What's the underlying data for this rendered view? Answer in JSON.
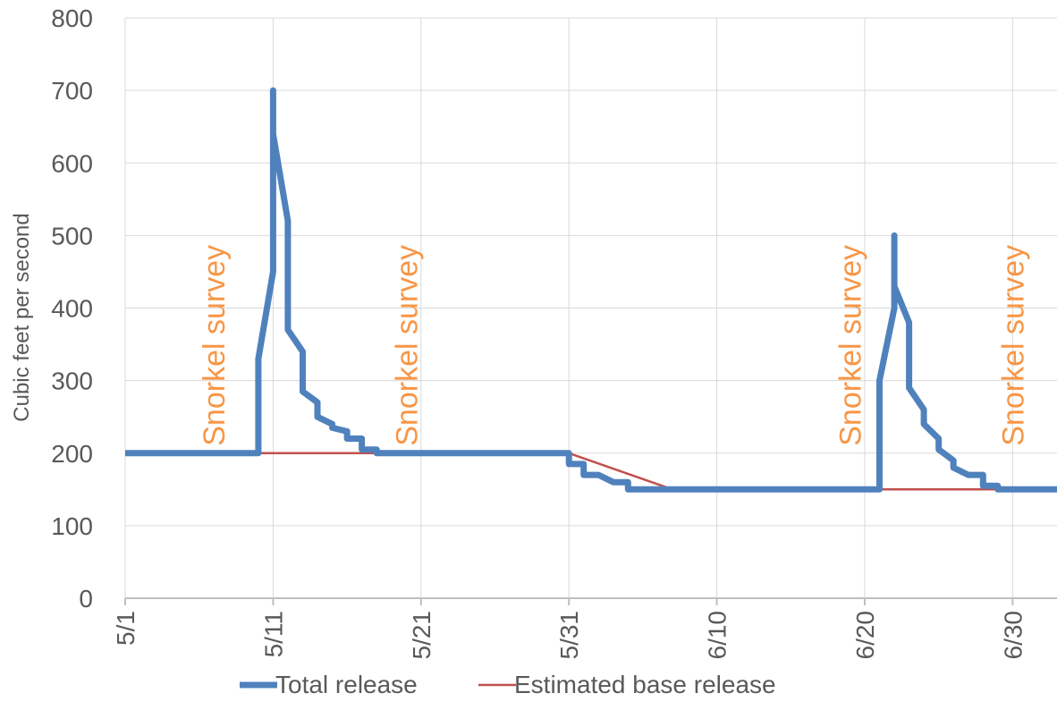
{
  "chart_data": {
    "type": "line",
    "title": "",
    "xlabel": "",
    "ylabel": "Cubic feet per second",
    "ylim": [
      0,
      800
    ],
    "yticks": [
      0,
      100,
      200,
      300,
      400,
      500,
      600,
      700,
      800
    ],
    "xlim": [
      "5/1",
      "7/3"
    ],
    "xticks": [
      {
        "label": "5/1",
        "day": "5/1"
      },
      {
        "label": "5/11",
        "day": "5/11"
      },
      {
        "label": "5/21",
        "day": "5/21"
      },
      {
        "label": "5/31",
        "day": "5/31"
      },
      {
        "label": "6/10",
        "day": "6/10"
      },
      {
        "label": "6/20",
        "day": "6/20"
      },
      {
        "label": "6/30",
        "day": "6/30"
      }
    ],
    "grid": true,
    "legend_position": "bottom",
    "colors": {
      "total": "#4f81bd",
      "base": "#c0504d",
      "annotation": "#f79646",
      "grid": "#d9d9d9",
      "axis": "#bfbfbf"
    },
    "series": [
      {
        "name": "Total release",
        "x": [
          "5/1",
          "5/10",
          "5/10",
          "5/11",
          "5/11",
          "5/11",
          "5/11",
          "5/12",
          "5/12",
          "5/12",
          "5/12",
          "5/12",
          "5/13",
          "5/13",
          "5/13",
          "5/13",
          "5/14",
          "5/14",
          "5/14",
          "5/15",
          "5/15",
          "5/16",
          "5/16",
          "5/17",
          "5/17",
          "5/18",
          "5/18",
          "5/19",
          "5/19",
          "5/31",
          "5/31",
          "6/1",
          "6/1",
          "6/2",
          "6/2",
          "6/3",
          "6/3",
          "6/4",
          "6/4",
          "6/5",
          "6/5",
          "6/6",
          "6/6",
          "6/7",
          "6/7",
          "6/8",
          "6/8",
          "6/21",
          "6/21",
          "6/22",
          "6/22",
          "6/22",
          "6/22",
          "6/23",
          "6/23",
          "6/23",
          "6/24",
          "6/24",
          "6/25",
          "6/25",
          "6/26",
          "6/26",
          "6/27",
          "6/27",
          "6/28",
          "6/28",
          "6/29",
          "6/29",
          "7/3"
        ],
        "y": [
          200,
          200,
          330,
          450,
          700,
          700,
          640,
          520,
          470,
          430,
          400,
          370,
          340,
          320,
          300,
          285,
          270,
          260,
          250,
          240,
          235,
          230,
          220,
          220,
          205,
          205,
          200,
          200,
          200,
          200,
          185,
          185,
          170,
          170,
          170,
          160,
          160,
          160,
          150,
          150,
          150,
          150,
          150,
          150,
          150,
          150,
          150,
          150,
          300,
          400,
          500,
          500,
          430,
          380,
          330,
          290,
          260,
          240,
          220,
          205,
          190,
          180,
          170,
          170,
          170,
          155,
          155,
          150,
          150
        ]
      },
      {
        "name": "Estimated base release",
        "x": [
          "5/1",
          "5/10",
          "5/19",
          "5/31",
          "6/7",
          "7/3"
        ],
        "y": [
          200,
          200,
          200,
          200,
          150,
          150
        ]
      }
    ],
    "annotations": [
      {
        "text": "Snorkel survey",
        "day": "5/7"
      },
      {
        "text": "Snorkel survey",
        "day": "5/20"
      },
      {
        "text": "Snorkel survey",
        "day": "6/19"
      },
      {
        "text": "Snorkel survey",
        "day": "6/30"
      }
    ]
  }
}
